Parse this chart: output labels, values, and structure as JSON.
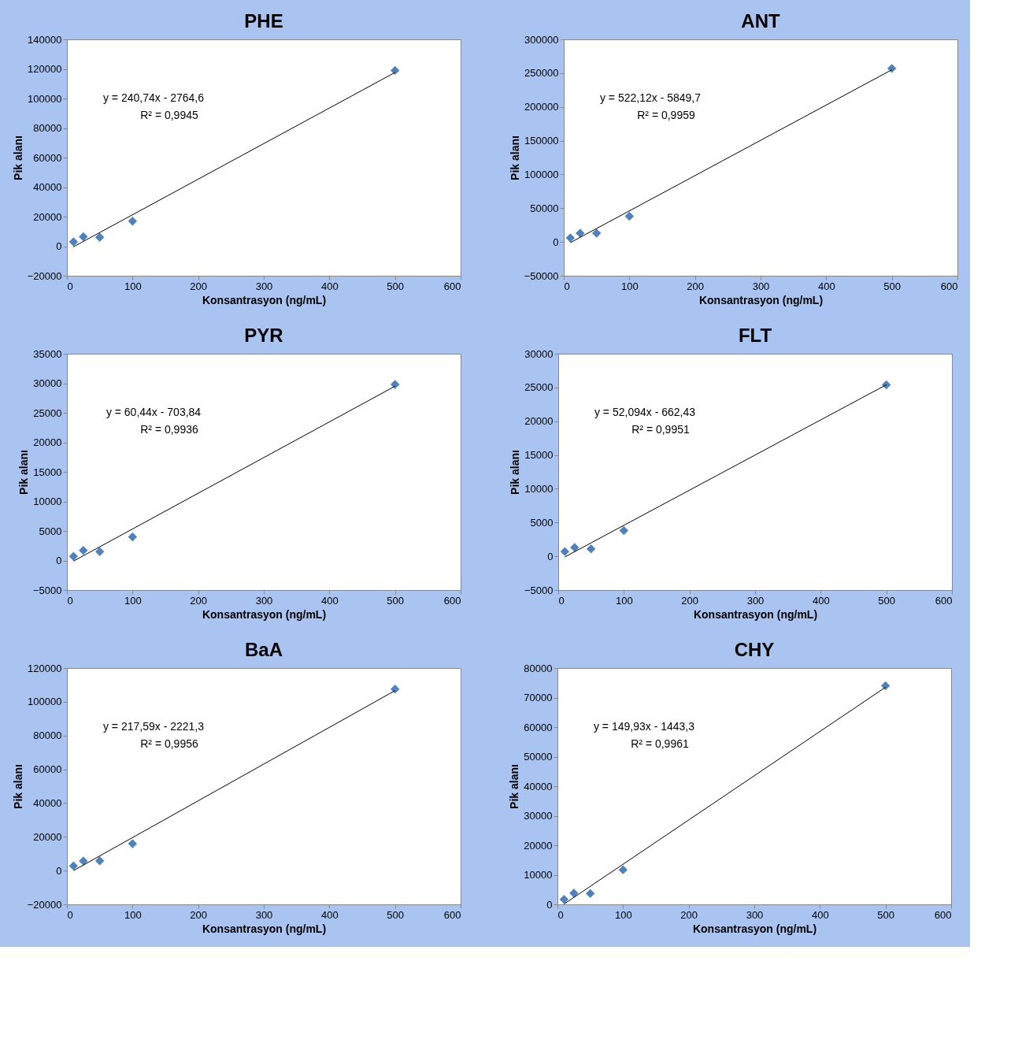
{
  "chart_data": [
    {
      "type": "scatter",
      "title": "PHE",
      "xlabel": "Konsantrasyon (ng/mL)",
      "ylabel": "Pik alanı",
      "marker": "diamond",
      "grid": false,
      "xlim": [
        0,
        600
      ],
      "xticks": [
        0,
        100,
        200,
        300,
        400,
        500,
        600
      ],
      "ylim": [
        -20000,
        140000
      ],
      "yticks": [
        -20000,
        0,
        20000,
        40000,
        60000,
        80000,
        100000,
        120000,
        140000
      ],
      "annotations": [
        "y = 240,74x - 2764,6",
        "R² = 0,9945"
      ],
      "series": [
        {
          "color": "#4f81bd",
          "x": [
            10,
            25,
            50,
            100,
            500
          ],
          "values": [
            2900,
            6400,
            6000,
            16900,
            119000
          ]
        },
        {
          "type": "line",
          "marker": "none",
          "line_style": "solid",
          "color": "#000000",
          "x": [
            10,
            500
          ],
          "values": [
            -400,
            117600
          ]
        }
      ]
    },
    {
      "type": "scatter",
      "title": "ANT",
      "xlabel": "Konsantrasyon (ng/mL)",
      "ylabel": "Pik alanı",
      "marker": "diamond",
      "grid": false,
      "xlim": [
        0,
        600
      ],
      "xticks": [
        0,
        100,
        200,
        300,
        400,
        500,
        600
      ],
      "ylim": [
        -50000,
        300000
      ],
      "yticks": [
        -50000,
        0,
        50000,
        100000,
        150000,
        200000,
        250000,
        300000
      ],
      "annotations": [
        "y = 522,12x - 5849,7",
        "R² = 0,9959"
      ],
      "series": [
        {
          "color": "#4f81bd",
          "x": [
            10,
            25,
            50,
            100,
            500
          ],
          "values": [
            6000,
            13000,
            13000,
            38000,
            257000
          ]
        },
        {
          "type": "line",
          "marker": "none",
          "line_style": "solid",
          "color": "#000000",
          "x": [
            10,
            500
          ],
          "values": [
            -1000,
            255000
          ]
        }
      ]
    },
    {
      "type": "scatter",
      "title": "PYR",
      "xlabel": "Konsantrasyon (ng/mL)",
      "ylabel": "Pik alanı",
      "marker": "diamond",
      "grid": false,
      "xlim": [
        0,
        600
      ],
      "xticks": [
        0,
        100,
        200,
        300,
        400,
        500,
        600
      ],
      "ylim": [
        -5000,
        35000
      ],
      "yticks": [
        -5000,
        0,
        5000,
        10000,
        15000,
        20000,
        25000,
        30000,
        35000
      ],
      "annotations": [
        "y = 60,44x - 703,84",
        "R² = 0,9936"
      ],
      "series": [
        {
          "color": "#4f81bd",
          "x": [
            10,
            25,
            50,
            100,
            500
          ],
          "values": [
            700,
            1700,
            1500,
            4000,
            29800
          ]
        },
        {
          "type": "line",
          "marker": "none",
          "line_style": "solid",
          "color": "#000000",
          "x": [
            10,
            500
          ],
          "values": [
            -100,
            29500
          ]
        }
      ]
    },
    {
      "type": "scatter",
      "title": "FLT",
      "xlabel": "Konsantrasyon (ng/mL)",
      "ylabel": "Pik alanı",
      "marker": "diamond",
      "grid": false,
      "xlim": [
        0,
        600
      ],
      "xticks": [
        0,
        100,
        200,
        300,
        400,
        500,
        600
      ],
      "ylim": [
        -5000,
        30000
      ],
      "yticks": [
        -5000,
        0,
        5000,
        10000,
        15000,
        20000,
        25000,
        30000
      ],
      "annotations": [
        "y = 52,094x - 662,43",
        "R² = 0,9951"
      ],
      "series": [
        {
          "color": "#4f81bd",
          "x": [
            10,
            25,
            50,
            100,
            500
          ],
          "values": [
            700,
            1300,
            1100,
            3800,
            25400
          ]
        },
        {
          "type": "line",
          "marker": "none",
          "line_style": "solid",
          "color": "#000000",
          "x": [
            10,
            500
          ],
          "values": [
            -100,
            25400
          ]
        }
      ]
    },
    {
      "type": "scatter",
      "title": "BaA",
      "xlabel": "Konsantrasyon (ng/mL)",
      "ylabel": "Pik alanı",
      "marker": "diamond",
      "grid": false,
      "xlim": [
        0,
        600
      ],
      "xticks": [
        0,
        100,
        200,
        300,
        400,
        500,
        600
      ],
      "ylim": [
        -20000,
        120000
      ],
      "yticks": [
        -20000,
        0,
        20000,
        40000,
        60000,
        80000,
        100000,
        120000
      ],
      "annotations": [
        "y = 217,59x - 2221,3",
        "R² = 0,9956"
      ],
      "series": [
        {
          "color": "#4f81bd",
          "x": [
            10,
            25,
            50,
            100,
            500
          ],
          "values": [
            2800,
            5700,
            5800,
            15900,
            107500
          ]
        },
        {
          "type": "line",
          "marker": "none",
          "line_style": "solid",
          "color": "#000000",
          "x": [
            10,
            500
          ],
          "values": [
            0,
            106600
          ]
        }
      ]
    },
    {
      "type": "scatter",
      "title": "CHY",
      "xlabel": "Konsantrasyon (ng/mL)",
      "ylabel": "Pik alanı",
      "marker": "diamond",
      "grid": false,
      "xlim": [
        0,
        600
      ],
      "xticks": [
        0,
        100,
        200,
        300,
        400,
        500,
        600
      ],
      "ylim": [
        0,
        80000
      ],
      "yticks": [
        0,
        10000,
        20000,
        30000,
        40000,
        50000,
        60000,
        70000,
        80000
      ],
      "annotations": [
        "y = 149,93x - 1443,3",
        "R² = 0,9961"
      ],
      "series": [
        {
          "color": "#4f81bd",
          "x": [
            10,
            25,
            50,
            100,
            500
          ],
          "values": [
            1700,
            3800,
            3700,
            11700,
            74000
          ]
        },
        {
          "type": "line",
          "marker": "none",
          "line_style": "solid",
          "color": "#000000",
          "x": [
            10,
            500
          ],
          "values": [
            100,
            73500
          ]
        }
      ]
    }
  ]
}
